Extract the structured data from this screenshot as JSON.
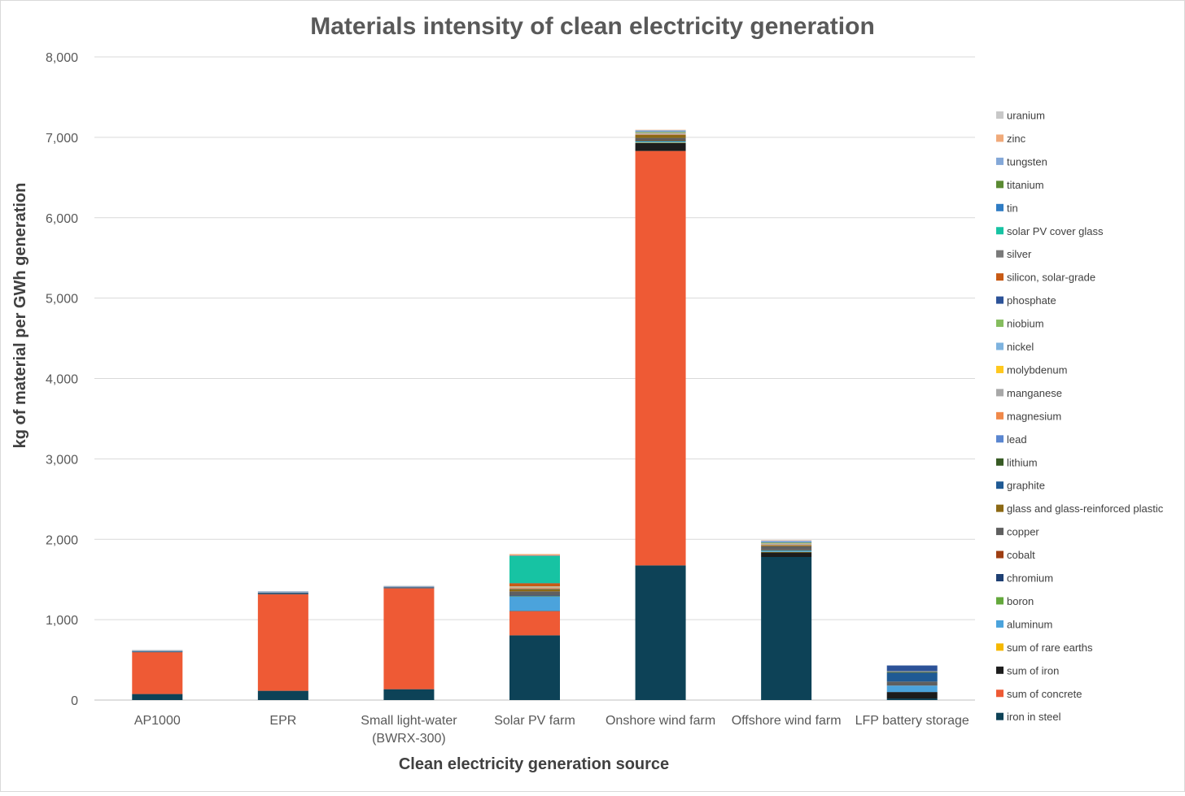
{
  "chart_data": {
    "type": "bar",
    "stacked": true,
    "title": "Materials intensity of clean electricity generation",
    "xlabel": "Clean electricity generation source",
    "ylabel": "kg of material per GWh generation",
    "ylim": [
      0,
      8000
    ],
    "yticks": [
      "0",
      "1,000",
      "2,000",
      "3,000",
      "4,000",
      "5,000",
      "6,000",
      "7,000",
      "8,000"
    ],
    "ytick_values": [
      0,
      1000,
      2000,
      3000,
      4000,
      5000,
      6000,
      7000,
      8000
    ],
    "grid": true,
    "legend_position": "right",
    "categories": [
      "AP1000",
      "EPR",
      "Small light-water (BWRX-300)",
      "Solar PV farm",
      "Onshore wind farm",
      "Offshore wind farm",
      "LFP battery storage"
    ],
    "category_lines": [
      [
        "AP1000"
      ],
      [
        "EPR"
      ],
      [
        "Small light-water",
        "(BWRX-300)"
      ],
      [
        "Solar PV farm"
      ],
      [
        "Onshore wind farm"
      ],
      [
        "Offshore wind farm"
      ],
      [
        "LFP battery storage"
      ]
    ],
    "series": [
      {
        "name": "iron in steel",
        "color": "#0d4257",
        "values": [
          75,
          115,
          135,
          805,
          1675,
          1780,
          20
        ]
      },
      {
        "name": "sum of concrete",
        "color": "#ee5a35",
        "values": [
          520,
          1200,
          1255,
          300,
          5155,
          0,
          0
        ]
      },
      {
        "name": "sum of iron",
        "color": "#1c1c1c",
        "values": [
          5,
          5,
          5,
          5,
          100,
          60,
          80
        ]
      },
      {
        "name": "sum of rare earths",
        "color": "#f5b800",
        "values": [
          0,
          0,
          0,
          0,
          3,
          3,
          0
        ]
      },
      {
        "name": "aluminum",
        "color": "#4ba3dc",
        "values": [
          3,
          5,
          3,
          180,
          20,
          20,
          80
        ]
      },
      {
        "name": "boron",
        "color": "#64a83c",
        "values": [
          0,
          0,
          0,
          2,
          1,
          1,
          0
        ]
      },
      {
        "name": "chromium",
        "color": "#1e3f73",
        "values": [
          3,
          5,
          4,
          10,
          8,
          8,
          0
        ]
      },
      {
        "name": "cobalt",
        "color": "#9e3e12",
        "values": [
          0,
          0,
          0,
          0,
          1,
          1,
          0
        ]
      },
      {
        "name": "copper",
        "color": "#5f5f5f",
        "values": [
          4,
          5,
          5,
          50,
          30,
          40,
          50
        ]
      },
      {
        "name": "glass and glass-reinforced plastic",
        "color": "#8c6914",
        "values": [
          0,
          0,
          0,
          30,
          40,
          15,
          0
        ]
      },
      {
        "name": "graphite",
        "color": "#1f5a94",
        "values": [
          0,
          0,
          0,
          0,
          0,
          0,
          110
        ]
      },
      {
        "name": "lithium",
        "color": "#375a24",
        "values": [
          0,
          0,
          0,
          0,
          0,
          0,
          10
        ]
      },
      {
        "name": "lead",
        "color": "#5a86d0",
        "values": [
          0,
          0,
          0,
          5,
          0,
          0,
          0
        ]
      },
      {
        "name": "magnesium",
        "color": "#f0894a",
        "values": [
          0,
          0,
          0,
          10,
          2,
          1,
          0
        ]
      },
      {
        "name": "manganese",
        "color": "#a8a8a8",
        "values": [
          3,
          4,
          3,
          10,
          20,
          20,
          10
        ]
      },
      {
        "name": "molybdenum",
        "color": "#ffc81e",
        "values": [
          0,
          0,
          0,
          2,
          1,
          1,
          0
        ]
      },
      {
        "name": "nickel",
        "color": "#7eb3df",
        "values": [
          5,
          8,
          6,
          5,
          10,
          10,
          0
        ]
      },
      {
        "name": "niobium",
        "color": "#85bd5e",
        "values": [
          0,
          0,
          0,
          0,
          1,
          1,
          0
        ]
      },
      {
        "name": "phosphate",
        "color": "#2c5298",
        "values": [
          0,
          0,
          0,
          0,
          0,
          0,
          70
        ]
      },
      {
        "name": "silicon, solar-grade",
        "color": "#c85a14",
        "values": [
          0,
          0,
          0,
          40,
          0,
          0,
          0
        ]
      },
      {
        "name": "silver",
        "color": "#7a7a7a",
        "values": [
          0,
          0,
          0,
          1,
          0,
          0,
          0
        ]
      },
      {
        "name": "solar PV cover glass",
        "color": "#17c3a3",
        "values": [
          0,
          0,
          0,
          340,
          0,
          0,
          0
        ]
      },
      {
        "name": "tin",
        "color": "#2f7cc4",
        "values": [
          0,
          0,
          0,
          1,
          0,
          0,
          0
        ]
      },
      {
        "name": "titanium",
        "color": "#5a8a32",
        "values": [
          0,
          0,
          0,
          0,
          1,
          1,
          0
        ]
      },
      {
        "name": "tungsten",
        "color": "#84a8d8",
        "values": [
          2,
          3,
          2,
          0,
          20,
          20,
          0
        ]
      },
      {
        "name": "zinc",
        "color": "#f0aa7a",
        "values": [
          0,
          0,
          0,
          20,
          5,
          5,
          0
        ]
      },
      {
        "name": "uranium",
        "color": "#c8c8c8",
        "values": [
          4,
          5,
          4,
          0,
          0,
          0,
          0
        ]
      }
    ]
  }
}
